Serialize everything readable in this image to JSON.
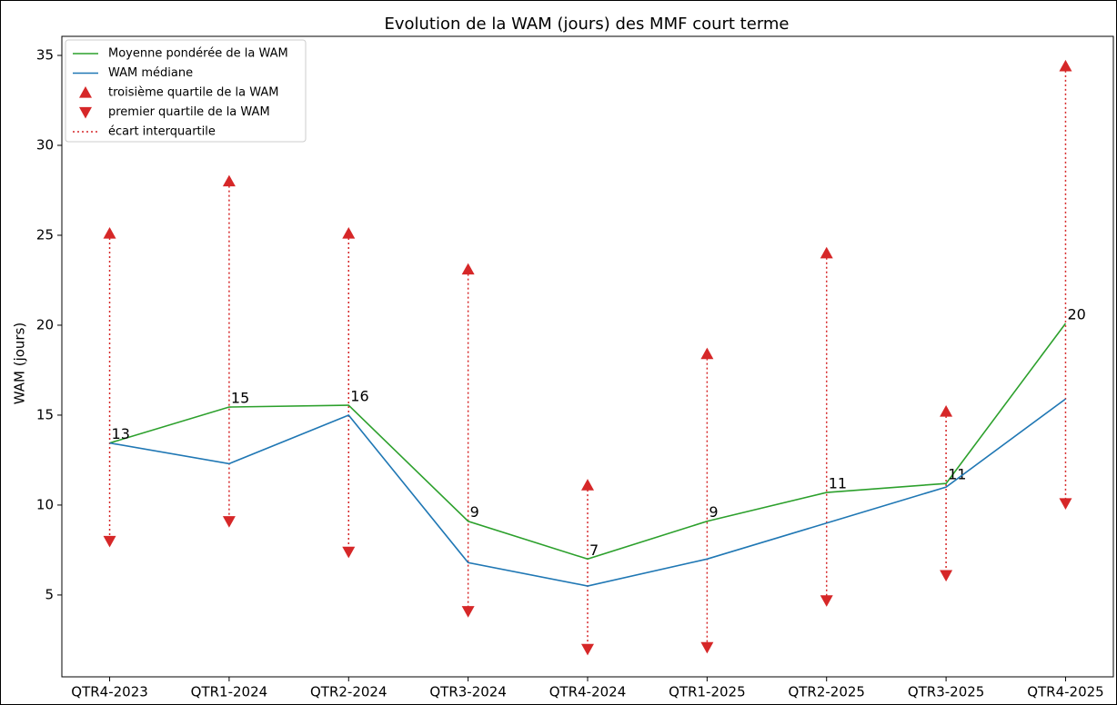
{
  "chart_data": {
    "type": "line",
    "title": "Evolution de la WAM (jours) des MMF court terme",
    "y_label": "WAM (jours)",
    "categories": [
      "QTR4-2023",
      "QTR1-2024",
      "QTR2-2024",
      "QTR3-2024",
      "QTR4-2024",
      "QTR1-2025",
      "QTR2-2025",
      "QTR3-2025",
      "QTR4-2025"
    ],
    "series": [
      {
        "name": "Moyenne pondérée de la WAM",
        "color": "#2ca02c",
        "marker": "none",
        "values": [
          13.45,
          15.45,
          15.55,
          9.1,
          7.0,
          9.1,
          10.7,
          11.2,
          20.1
        ],
        "value_labels": [
          "13",
          "15",
          "16",
          "9",
          "7",
          "9",
          "11",
          "11",
          "20"
        ]
      },
      {
        "name": "WAM médiane",
        "color": "#1f77b4",
        "marker": "none",
        "values": [
          13.45,
          12.3,
          15.0,
          6.8,
          5.5,
          7.0,
          9.0,
          11.0,
          15.9
        ]
      },
      {
        "name": "troisième quartile de la WAM",
        "color": "#d62728",
        "marker": "^",
        "values": [
          25.1,
          28.0,
          25.1,
          23.1,
          11.1,
          18.4,
          24.0,
          15.2,
          34.4
        ]
      },
      {
        "name": "premier quartile de la WAM",
        "color": "#d62728",
        "marker": "v",
        "values": [
          8.0,
          9.1,
          7.4,
          4.1,
          2.0,
          2.1,
          4.7,
          6.1,
          10.1
        ]
      }
    ],
    "range_legend": {
      "name": "écart interquartile",
      "color": "#d62728",
      "linestyle": "dotted"
    },
    "ylim": [
      0.45,
      36.06
    ],
    "yticks": [
      5,
      10,
      15,
      20,
      25,
      30,
      35
    ],
    "legend": "upper left",
    "grid": false
  }
}
